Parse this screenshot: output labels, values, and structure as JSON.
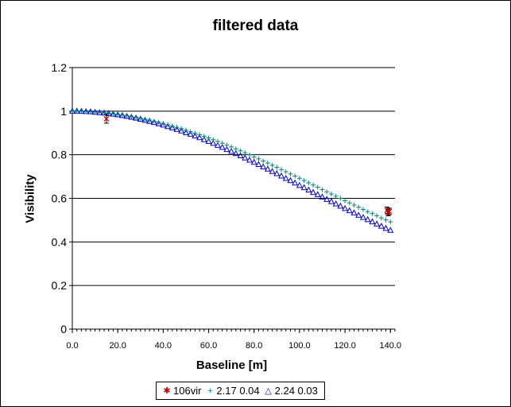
{
  "chart_data": {
    "type": "scatter",
    "title": "filtered data",
    "xlabel": "Baseline [m]",
    "ylabel": "Visibility",
    "xlim": [
      0,
      142
    ],
    "ylim": [
      0,
      1.2
    ],
    "x_ticks": [
      "0.0",
      "20.0",
      "40.0",
      "60.0",
      "80.0",
      "100.0",
      "120.0",
      "140.0"
    ],
    "y_ticks": [
      "0",
      "0.2",
      "0.4",
      "0.6",
      "0.8",
      "1",
      "1.2"
    ],
    "grid": "horizontal",
    "legend_position": "bottom",
    "series": [
      {
        "name": "106vir",
        "marker": "star",
        "color": "#cc0000",
        "x": [
          15.0,
          138.5,
          139.0,
          139.5
        ],
        "y": [
          0.965,
          0.545,
          0.535,
          0.54
        ],
        "yerr": [
          0.02,
          0.015,
          0.015,
          0.015
        ]
      },
      {
        "name": "2.17 0.04",
        "marker": "plus",
        "color": "#008080",
        "x": [
          0,
          2,
          4,
          6,
          8,
          10,
          12,
          14,
          16,
          18,
          20,
          22,
          24,
          26,
          28,
          30,
          32,
          34,
          36,
          38,
          40,
          42,
          44,
          46,
          48,
          50,
          52,
          54,
          56,
          58,
          60,
          62,
          64,
          66,
          68,
          70,
          72,
          74,
          76,
          78,
          80,
          82,
          84,
          86,
          88,
          90,
          92,
          94,
          96,
          98,
          100,
          102,
          104,
          106,
          108,
          110,
          112,
          114,
          116,
          118,
          120,
          122,
          124,
          126,
          128,
          130,
          132,
          134,
          136,
          138,
          140
        ],
        "y": [
          1.0,
          1.0,
          0.999,
          0.998,
          0.997,
          0.996,
          0.994,
          0.992,
          0.99,
          0.988,
          0.985,
          0.982,
          0.979,
          0.975,
          0.972,
          0.968,
          0.963,
          0.959,
          0.954,
          0.949,
          0.944,
          0.938,
          0.932,
          0.926,
          0.92,
          0.913,
          0.906,
          0.899,
          0.892,
          0.885,
          0.877,
          0.869,
          0.861,
          0.853,
          0.844,
          0.836,
          0.827,
          0.818,
          0.809,
          0.8,
          0.79,
          0.781,
          0.771,
          0.762,
          0.752,
          0.742,
          0.732,
          0.722,
          0.712,
          0.702,
          0.692,
          0.682,
          0.671,
          0.661,
          0.651,
          0.64,
          0.63,
          0.62,
          0.61,
          0.6,
          0.589,
          0.579,
          0.569,
          0.559,
          0.549,
          0.539,
          0.53,
          0.52,
          0.51,
          0.501,
          0.492
        ]
      },
      {
        "name": "2.24 0.03",
        "marker": "triangle",
        "color": "#0000cc",
        "x": [
          0,
          2,
          4,
          6,
          8,
          10,
          12,
          14,
          16,
          18,
          20,
          22,
          24,
          26,
          28,
          30,
          32,
          34,
          36,
          38,
          40,
          42,
          44,
          46,
          48,
          50,
          52,
          54,
          56,
          58,
          60,
          62,
          64,
          66,
          68,
          70,
          72,
          74,
          76,
          78,
          80,
          82,
          84,
          86,
          88,
          90,
          92,
          94,
          96,
          98,
          100,
          102,
          104,
          106,
          108,
          110,
          112,
          114,
          116,
          118,
          120,
          122,
          124,
          126,
          128,
          130,
          132,
          134,
          136,
          138,
          140
        ],
        "y": [
          1.0,
          1.0,
          0.999,
          0.998,
          0.997,
          0.995,
          0.993,
          0.991,
          0.989,
          0.986,
          0.983,
          0.98,
          0.976,
          0.972,
          0.968,
          0.963,
          0.958,
          0.953,
          0.948,
          0.942,
          0.936,
          0.929,
          0.923,
          0.916,
          0.909,
          0.901,
          0.894,
          0.886,
          0.878,
          0.869,
          0.861,
          0.852,
          0.843,
          0.834,
          0.824,
          0.815,
          0.805,
          0.795,
          0.785,
          0.775,
          0.765,
          0.755,
          0.744,
          0.734,
          0.723,
          0.713,
          0.702,
          0.691,
          0.681,
          0.67,
          0.659,
          0.649,
          0.638,
          0.627,
          0.617,
          0.606,
          0.595,
          0.585,
          0.574,
          0.564,
          0.553,
          0.543,
          0.533,
          0.522,
          0.512,
          0.502,
          0.492,
          0.482,
          0.472,
          0.462,
          0.453
        ]
      }
    ]
  }
}
